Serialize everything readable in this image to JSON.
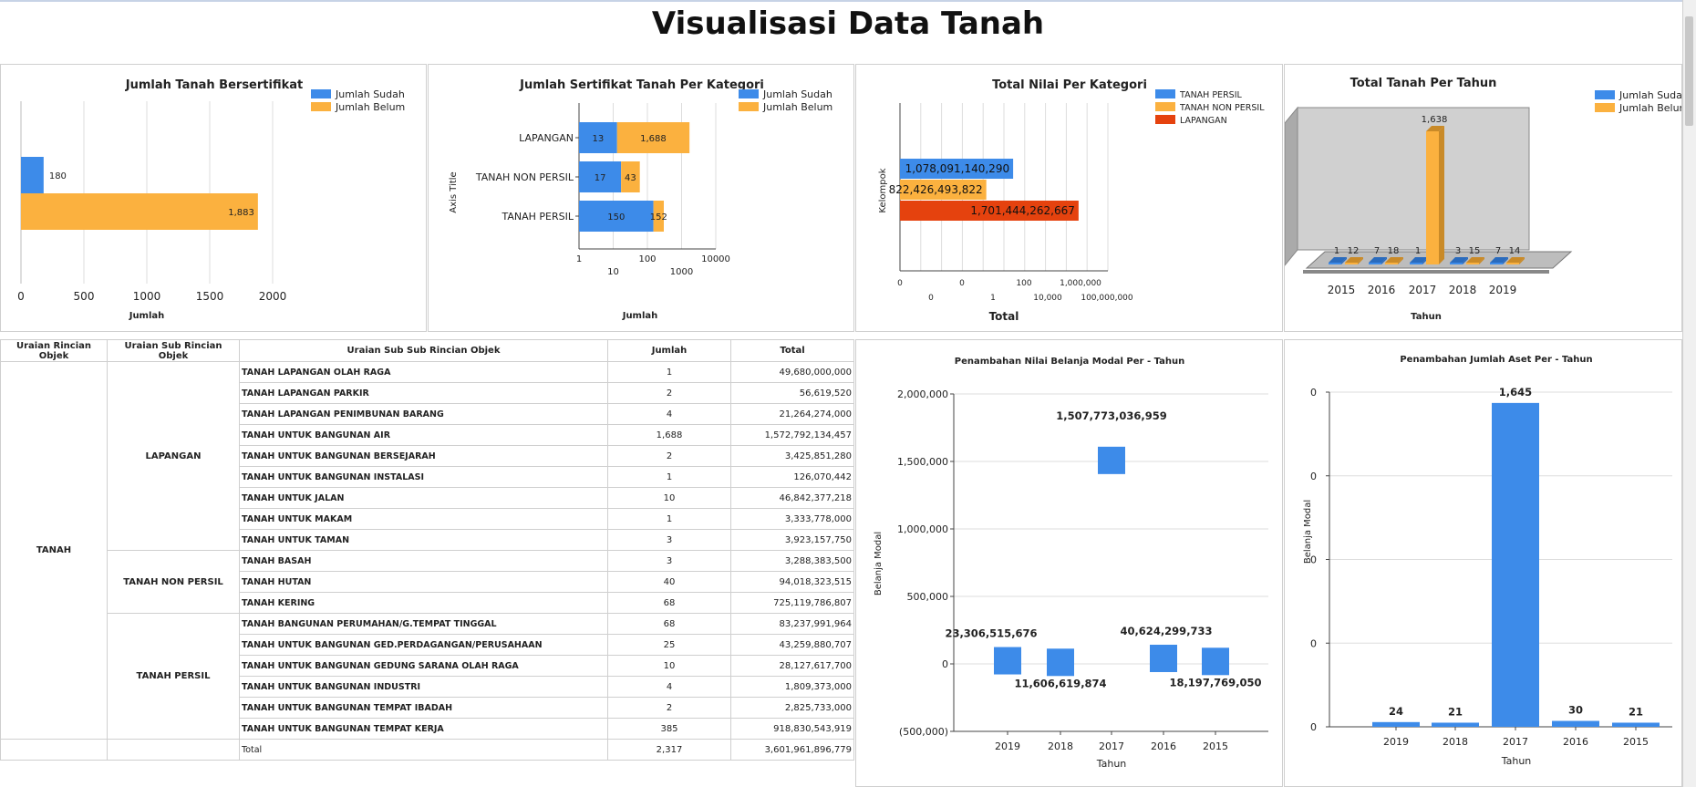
{
  "page": {
    "title": "Visualisasi Data Tanah"
  },
  "chart_data": [
    {
      "id": "c1",
      "type": "bar",
      "orientation": "horizontal",
      "title": "Jumlah Tanah Bersertifikat",
      "xlabel": "Jumlah",
      "ylabel": "",
      "xlim": [
        0,
        2000
      ],
      "xticks": [
        "0",
        "500",
        "1000",
        "1500",
        "2000"
      ],
      "legend_position": "top-right",
      "series": [
        {
          "name": "Jumlah Sudah",
          "values": [
            180
          ],
          "labels": [
            "180"
          ]
        },
        {
          "name": "Jumlah Belum",
          "values": [
            1883
          ],
          "labels": [
            "1,883"
          ]
        }
      ]
    },
    {
      "id": "c2",
      "type": "bar",
      "orientation": "horizontal",
      "stacked": true,
      "xscale": "log",
      "title": "Jumlah Sertifikat Tanah Per Kategori",
      "xlabel": "Jumlah",
      "ylabel": "Axis Title",
      "categories": [
        "LAPANGAN",
        "TANAH NON PERSIL",
        "TANAH PERSIL"
      ],
      "xticks_top": [
        "1",
        "100",
        "10000"
      ],
      "xticks_bottom": [
        "10",
        "1000"
      ],
      "legend_position": "top-right",
      "series": [
        {
          "name": "Jumlah Sudah",
          "values": [
            13,
            17,
            150
          ],
          "labels": [
            "13",
            "17",
            "150"
          ]
        },
        {
          "name": "Jumlah Belum",
          "values": [
            1688,
            43,
            152
          ],
          "labels": [
            "1,688",
            "43",
            "152"
          ]
        }
      ]
    },
    {
      "id": "c3",
      "type": "bar",
      "orientation": "horizontal",
      "xscale": "log",
      "title": "Total Nilai Per Kategori",
      "xlabel": "Total",
      "ylabel": "Kelompok",
      "xticks_top": [
        "0",
        "0",
        "100",
        "1,000,000"
      ],
      "xticks_bottom": [
        "0",
        "1",
        "10,000",
        "100,000,000"
      ],
      "legend_position": "top-right",
      "series": [
        {
          "name": "TANAH PERSIL",
          "values": [
            1078091140290
          ],
          "labels": [
            "1,078,091,140,290"
          ]
        },
        {
          "name": "TANAH NON PERSIL",
          "values": [
            822426493822
          ],
          "labels": [
            "822,426,493,822"
          ]
        },
        {
          "name": "LAPANGAN",
          "values": [
            1701444262667
          ],
          "labels": [
            "1,701,444,262,667"
          ]
        }
      ]
    },
    {
      "id": "c4",
      "type": "bar",
      "is3d": true,
      "title": "Total Tanah Per Tahun",
      "xlabel": "Tahun",
      "ylabel": "",
      "categories": [
        "2015",
        "2016",
        "2017",
        "2018",
        "2019"
      ],
      "legend_position": "top-right",
      "series": [
        {
          "name": "Jumlah Sudah",
          "values": [
            1,
            7,
            1,
            3,
            7
          ],
          "labels": [
            "1",
            "7",
            "1",
            "3",
            "7"
          ]
        },
        {
          "name": "Jumlah Belum",
          "values": [
            12,
            18,
            1638,
            15,
            14
          ],
          "labels": [
            "12",
            "18",
            "1,638",
            "15",
            "14"
          ]
        }
      ]
    },
    {
      "id": "c5",
      "type": "bar",
      "floating": true,
      "title": "Penambahan Nilai Belanja Modal Per - Tahun",
      "xlabel": "Tahun",
      "ylabel": "Belanja Modal",
      "ylim": [
        -500000000000,
        2000000000000
      ],
      "yticks": [
        "(500,000)",
        "0",
        "500,000",
        "1,000,000",
        "1,500,000",
        "2,000,000"
      ],
      "categories": [
        "2019",
        "2018",
        "2017",
        "2016",
        "2015"
      ],
      "values": [
        23306515676,
        11606619874,
        1507773036959,
        40624299733,
        18197769050
      ],
      "labels": [
        "23,306,515,676",
        "11,606,619,874",
        "1,507,773,036,959",
        "40,624,299,733",
        "18,197,769,050"
      ]
    },
    {
      "id": "c6",
      "type": "bar",
      "title": "Penambahan Jumlah Aset Per - Tahun",
      "xlabel": "Tahun",
      "ylabel": "Belanja Modal",
      "ylim": [
        0,
        1700
      ],
      "yticks": [
        "0",
        "0",
        "0",
        "0",
        "0"
      ],
      "categories": [
        "2019",
        "2018",
        "2017",
        "2016",
        "2015"
      ],
      "values": [
        24,
        21,
        1645,
        30,
        21
      ],
      "labels": [
        "24",
        "21",
        "1,645",
        "30",
        "21"
      ]
    }
  ],
  "table": {
    "headers": [
      "Uraian Rincian Objek",
      "Uraian Sub Rincian Objek",
      "Uraian Sub Sub Rincian Objek",
      "Jumlah",
      "Total"
    ],
    "group": "TANAH",
    "subgroups": [
      {
        "name": "LAPANGAN",
        "rows": [
          {
            "item": "TANAH LAPANGAN OLAH RAGA",
            "jumlah": "1",
            "total": "49,680,000,000"
          },
          {
            "item": "TANAH LAPANGAN PARKIR",
            "jumlah": "2",
            "total": "56,619,520"
          },
          {
            "item": "TANAH LAPANGAN PENIMBUNAN BARANG",
            "jumlah": "4",
            "total": "21,264,274,000"
          },
          {
            "item": "TANAH UNTUK BANGUNAN AIR",
            "jumlah": "1,688",
            "total": "1,572,792,134,457"
          },
          {
            "item": "TANAH UNTUK BANGUNAN BERSEJARAH",
            "jumlah": "2",
            "total": "3,425,851,280"
          },
          {
            "item": "TANAH UNTUK BANGUNAN INSTALASI",
            "jumlah": "1",
            "total": "126,070,442"
          },
          {
            "item": "TANAH UNTUK JALAN",
            "jumlah": "10",
            "total": "46,842,377,218"
          },
          {
            "item": "TANAH UNTUK MAKAM",
            "jumlah": "1",
            "total": "3,333,778,000"
          },
          {
            "item": "TANAH UNTUK TAMAN",
            "jumlah": "3",
            "total": "3,923,157,750"
          }
        ]
      },
      {
        "name": "TANAH NON PERSIL",
        "rows": [
          {
            "item": "TANAH BASAH",
            "jumlah": "3",
            "total": "3,288,383,500"
          },
          {
            "item": "TANAH HUTAN",
            "jumlah": "40",
            "total": "94,018,323,515"
          },
          {
            "item": "TANAH KERING",
            "jumlah": "68",
            "total": "725,119,786,807"
          }
        ]
      },
      {
        "name": "TANAH PERSIL",
        "rows": [
          {
            "item": "TANAH BANGUNAN PERUMAHAN/G.TEMPAT TINGGAL",
            "jumlah": "68",
            "total": "83,237,991,964"
          },
          {
            "item": "TANAH UNTUK BANGUNAN GED.PERDAGANGAN/PERUSAHAAN",
            "jumlah": "25",
            "total": "43,259,880,707"
          },
          {
            "item": "TANAH UNTUK BANGUNAN GEDUNG SARANA OLAH RAGA",
            "jumlah": "10",
            "total": "28,127,617,700"
          },
          {
            "item": "TANAH UNTUK BANGUNAN INDUSTRI",
            "jumlah": "4",
            "total": "1,809,373,000"
          },
          {
            "item": "TANAH UNTUK BANGUNAN TEMPAT IBADAH",
            "jumlah": "2",
            "total": "2,825,733,000"
          },
          {
            "item": "TANAH UNTUK BANGUNAN TEMPAT KERJA",
            "jumlah": "385",
            "total": "918,830,543,919"
          }
        ]
      }
    ],
    "total_row": {
      "label": "Total",
      "jumlah": "2,317",
      "total": "3,601,961,896,779"
    }
  },
  "colors": {
    "blue": "#3d8be9",
    "orange": "#fbb13f",
    "red": "#e5420e",
    "grid": "#dddddd",
    "axis": "#444444"
  }
}
